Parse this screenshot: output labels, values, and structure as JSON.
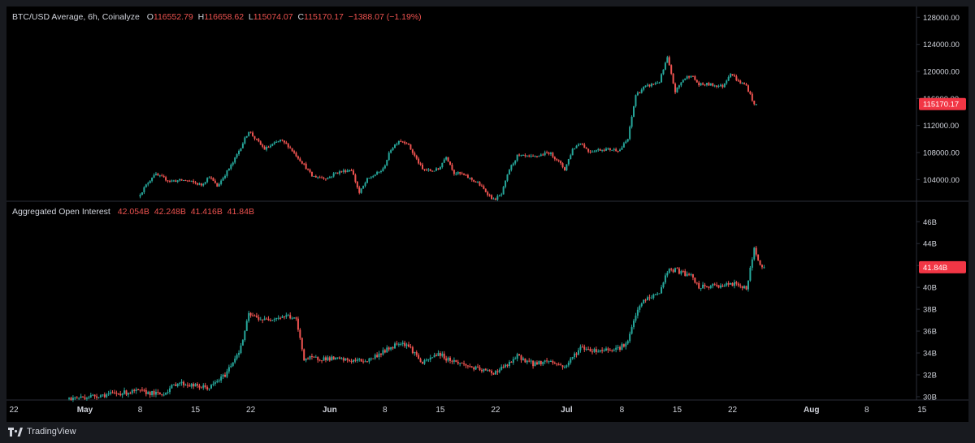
{
  "header": {
    "title": "BTC/USD Average, 6h, Coinalyze",
    "o_label": "O",
    "o_value": "116552.79",
    "h_label": "H",
    "h_value": "116658.62",
    "l_label": "L",
    "l_value": "115074.07",
    "c_label": "C",
    "c_value": "115170.17",
    "change": "−1388.07 (−1.19%)"
  },
  "oi_header": {
    "title": "Aggregated Open Interest",
    "o_value": "42.054B",
    "h_value": "42.248B",
    "l_value": "41.416B",
    "c_value": "41.84B"
  },
  "price_badge": "115170.17",
  "oi_badge": "41.84B",
  "brand": "TradingView",
  "colors": {
    "up": "#26a69a",
    "down": "#ef5350",
    "badge": "#f23645",
    "text": "#d1d4dc",
    "grid_line": "#2a2e39"
  },
  "chart_data": [
    {
      "type": "candlestick",
      "title": "BTC/USD Average, 6h, Coinalyze",
      "ylim": [
        100800,
        129600
      ],
      "yticks": [
        "104000.00",
        "108000.00",
        "112000.00",
        "116000.00",
        "120000.00",
        "124000.00",
        "128000.00"
      ],
      "ytick_values": [
        104000,
        108000,
        112000,
        116000,
        120000,
        124000,
        128000
      ],
      "current": 115170.17,
      "anchors": [
        [
          "2025-05-08",
          101500
        ],
        [
          "2025-05-10",
          104800
        ],
        [
          "2025-05-12",
          103800
        ],
        [
          "2025-05-14",
          103900
        ],
        [
          "2025-05-16",
          103200
        ],
        [
          "2025-05-17",
          104500
        ],
        [
          "2025-05-18",
          103000
        ],
        [
          "2025-05-20",
          106500
        ],
        [
          "2025-05-22",
          111200
        ],
        [
          "2025-05-23",
          109800
        ],
        [
          "2025-05-24",
          108500
        ],
        [
          "2025-05-26",
          109800
        ],
        [
          "2025-05-27",
          109000
        ],
        [
          "2025-05-29",
          106200
        ],
        [
          "2025-05-30",
          104500
        ],
        [
          "2025-06-01",
          104200
        ],
        [
          "2025-06-02",
          105000
        ],
        [
          "2025-06-04",
          105500
        ],
        [
          "2025-06-05",
          102000
        ],
        [
          "2025-06-06",
          104000
        ],
        [
          "2025-06-08",
          105500
        ],
        [
          "2025-06-09",
          108500
        ],
        [
          "2025-06-10",
          109800
        ],
        [
          "2025-06-11",
          109500
        ],
        [
          "2025-06-12",
          107500
        ],
        [
          "2025-06-13",
          105500
        ],
        [
          "2025-06-14",
          105300
        ],
        [
          "2025-06-15",
          105500
        ],
        [
          "2025-06-16",
          107500
        ],
        [
          "2025-06-17",
          105000
        ],
        [
          "2025-06-18",
          104800
        ],
        [
          "2025-06-20",
          103500
        ],
        [
          "2025-06-22",
          101000
        ],
        [
          "2025-06-23",
          101800
        ],
        [
          "2025-06-24",
          105500
        ],
        [
          "2025-06-25",
          107500
        ],
        [
          "2025-06-27",
          107300
        ],
        [
          "2025-06-29",
          108000
        ],
        [
          "2025-06-30",
          107000
        ],
        [
          "2025-07-01",
          105500
        ],
        [
          "2025-07-02",
          108500
        ],
        [
          "2025-07-03",
          109500
        ],
        [
          "2025-07-04",
          108200
        ],
        [
          "2025-07-06",
          108500
        ],
        [
          "2025-07-08",
          108400
        ],
        [
          "2025-07-09",
          110000
        ],
        [
          "2025-07-10",
          116500
        ],
        [
          "2025-07-11",
          117600
        ],
        [
          "2025-07-13",
          118500
        ],
        [
          "2025-07-14",
          122000
        ],
        [
          "2025-07-15",
          117000
        ],
        [
          "2025-07-16",
          118800
        ],
        [
          "2025-07-17",
          119500
        ],
        [
          "2025-07-18",
          118000
        ],
        [
          "2025-07-19",
          118100
        ],
        [
          "2025-07-21",
          117800
        ],
        [
          "2025-07-22",
          119800
        ],
        [
          "2025-07-23",
          118500
        ],
        [
          "2025-07-24",
          117900
        ],
        [
          "2025-07-25",
          115170
        ]
      ]
    },
    {
      "type": "candlestick",
      "title": "Aggregated Open Interest",
      "ylim": [
        29.7,
        47.8
      ],
      "yticks": [
        "30B",
        "32B",
        "34B",
        "36B",
        "38B",
        "40B",
        "42B",
        "44B",
        "46B"
      ],
      "ytick_values": [
        30,
        32,
        34,
        36,
        38,
        40,
        42,
        44,
        46
      ],
      "current": 41.84,
      "anchors": [
        [
          "2025-04-29",
          29.8
        ],
        [
          "2025-05-04",
          30.2
        ],
        [
          "2025-05-08",
          30.5
        ],
        [
          "2025-05-11",
          30.2
        ],
        [
          "2025-05-13",
          31.3
        ],
        [
          "2025-05-15",
          31.0
        ],
        [
          "2025-05-17",
          30.8
        ],
        [
          "2025-05-19",
          32.0
        ],
        [
          "2025-05-21",
          34.5
        ],
        [
          "2025-05-22",
          37.5
        ],
        [
          "2025-05-24",
          37.0
        ],
        [
          "2025-05-25",
          37.2
        ],
        [
          "2025-05-27",
          37.4
        ],
        [
          "2025-05-28",
          37.0
        ],
        [
          "2025-05-29",
          33.5
        ],
        [
          "2025-06-01",
          33.5
        ],
        [
          "2025-06-04",
          33.3
        ],
        [
          "2025-06-06",
          33.3
        ],
        [
          "2025-06-09",
          34.5
        ],
        [
          "2025-06-10",
          35.0
        ],
        [
          "2025-06-11",
          34.8
        ],
        [
          "2025-06-12",
          34.0
        ],
        [
          "2025-06-13",
          33.0
        ],
        [
          "2025-06-15",
          34.0
        ],
        [
          "2025-06-16",
          33.5
        ],
        [
          "2025-06-18",
          33.0
        ],
        [
          "2025-06-20",
          32.5
        ],
        [
          "2025-06-22",
          32.2
        ],
        [
          "2025-06-24",
          33.0
        ],
        [
          "2025-06-25",
          33.7
        ],
        [
          "2025-06-27",
          33.0
        ],
        [
          "2025-06-29",
          33.3
        ],
        [
          "2025-07-01",
          32.7
        ],
        [
          "2025-07-03",
          34.5
        ],
        [
          "2025-07-05",
          34.2
        ],
        [
          "2025-07-08",
          34.5
        ],
        [
          "2025-07-09",
          35.0
        ],
        [
          "2025-07-10",
          37.5
        ],
        [
          "2025-07-11",
          38.8
        ],
        [
          "2025-07-13",
          39.5
        ],
        [
          "2025-07-14",
          41.5
        ],
        [
          "2025-07-15",
          41.6
        ],
        [
          "2025-07-17",
          41.0
        ],
        [
          "2025-07-18",
          40.0
        ],
        [
          "2025-07-21",
          40.2
        ],
        [
          "2025-07-23",
          40.3
        ],
        [
          "2025-07-24",
          39.8
        ],
        [
          "2025-07-25",
          43.5
        ],
        [
          "2025-07-26",
          41.84
        ]
      ]
    }
  ],
  "x_axis": {
    "ticks": [
      {
        "label": "22",
        "date": "2025-04-22"
      },
      {
        "label": "May",
        "date": "2025-05-01"
      },
      {
        "label": "8",
        "date": "2025-05-08"
      },
      {
        "label": "15",
        "date": "2025-05-15"
      },
      {
        "label": "22",
        "date": "2025-05-22"
      },
      {
        "label": "Jun",
        "date": "2025-06-01"
      },
      {
        "label": "8",
        "date": "2025-06-08"
      },
      {
        "label": "15",
        "date": "2025-06-15"
      },
      {
        "label": "22",
        "date": "2025-06-22"
      },
      {
        "label": "Jul",
        "date": "2025-07-01"
      },
      {
        "label": "8",
        "date": "2025-07-08"
      },
      {
        "label": "15",
        "date": "2025-07-15"
      },
      {
        "label": "22",
        "date": "2025-07-22"
      },
      {
        "label": "Aug",
        "date": "2025-08-01"
      },
      {
        "label": "8",
        "date": "2025-08-08"
      },
      {
        "label": "15",
        "date": "2025-08-15"
      }
    ]
  }
}
